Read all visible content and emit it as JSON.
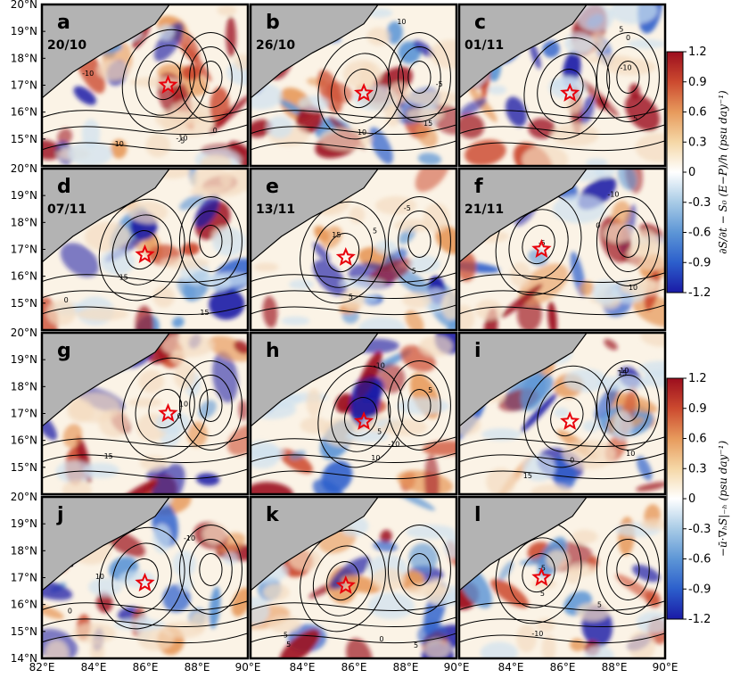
{
  "chart_data": {
    "type": "heatmap",
    "layout": {
      "rows": 4,
      "cols": 3
    },
    "xlim": [
      82,
      90
    ],
    "ylim_upper": [
      14,
      20
    ],
    "ylim_lower": [
      14,
      20
    ],
    "x_ticks": [
      "82°E",
      "84°E",
      "86°E",
      "88°E",
      "90°E"
    ],
    "y_ticks": [
      "20°N",
      "19°N",
      "18°N",
      "17°N",
      "16°N",
      "15°N",
      "14°N"
    ],
    "y_tick_top_label": "20°N",
    "land_color": "#b3b3b3",
    "colormap": [
      "#1a1aa6",
      "#2c5fcc",
      "#5d96d6",
      "#a8cbe6",
      "#ffffff",
      "#f5d7a6",
      "#e79a5c",
      "#cc4a2f",
      "#9c0e1e"
    ],
    "panels": [
      {
        "letter": "a",
        "date": "20/10",
        "star": [
          86.9,
          17.0
        ]
      },
      {
        "letter": "b",
        "date": "26/10",
        "star": [
          86.4,
          16.7
        ]
      },
      {
        "letter": "c",
        "date": "01/11",
        "star": [
          86.3,
          16.7
        ]
      },
      {
        "letter": "d",
        "date": "07/11",
        "star": [
          86.0,
          16.8
        ]
      },
      {
        "letter": "e",
        "date": "13/11",
        "star": [
          85.7,
          16.7
        ]
      },
      {
        "letter": "f",
        "date": "21/11",
        "star": [
          85.2,
          17.0
        ]
      },
      {
        "letter": "g",
        "date": "",
        "star": [
          86.9,
          17.0
        ]
      },
      {
        "letter": "h",
        "date": "",
        "star": [
          86.4,
          16.7
        ]
      },
      {
        "letter": "i",
        "date": "",
        "star": [
          86.3,
          16.7
        ]
      },
      {
        "letter": "j",
        "date": "",
        "star": [
          86.0,
          16.8
        ]
      },
      {
        "letter": "k",
        "date": "",
        "star": [
          85.7,
          16.7
        ]
      },
      {
        "letter": "l",
        "date": "",
        "star": [
          85.2,
          17.0
        ]
      }
    ],
    "colorbars": [
      {
        "ticks": [
          "1.2",
          "0.9",
          "0.6",
          "0.3",
          "0",
          "-0.3",
          "-0.6",
          "-0.9",
          "-1.2"
        ],
        "range": [
          -1.2,
          1.2
        ],
        "label": "∂S/∂t − S₀ (E−P)/h  (psu day⁻¹)"
      },
      {
        "ticks": [
          "1.2",
          "0.9",
          "0.6",
          "0.3",
          "0",
          "-0.3",
          "-0.6",
          "-0.9",
          "-1.2"
        ],
        "range": [
          -1.2,
          1.2
        ],
        "label": "−ū·∇ₕS|₋ₕ  (psu day⁻¹)"
      }
    ],
    "contour_labels": [
      "-10",
      "-5",
      "0",
      "5",
      "10",
      "15"
    ]
  }
}
